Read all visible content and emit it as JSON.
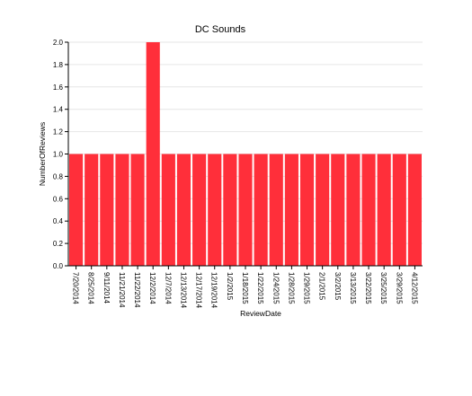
{
  "chart_data": {
    "type": "bar",
    "title": "DC Sounds",
    "xlabel": "ReviewDate",
    "ylabel": "NumberOfReviews",
    "ylim": [
      0,
      2.0
    ],
    "yticks": [
      "0.0",
      "0.2",
      "0.4",
      "0.6",
      "0.8",
      "1.0",
      "1.2",
      "1.4",
      "1.6",
      "1.8",
      "2.0"
    ],
    "grid": true,
    "bar_color": "#ff2f3a",
    "categories": [
      "7/20/2014",
      "8/25/2014",
      "9/11/2014",
      "11/21/2014",
      "11/22/2014",
      "12/2/2014",
      "12/7/2014",
      "12/13/2014",
      "12/17/2014",
      "12/19/2014",
      "1/2/2015",
      "1/18/2015",
      "1/22/2015",
      "1/24/2015",
      "1/28/2015",
      "1/29/2015",
      "2/1/2015",
      "3/2/2015",
      "3/13/2015",
      "3/22/2015",
      "3/25/2015",
      "3/29/2015",
      "4/12/2015"
    ],
    "values": [
      1,
      1,
      1,
      1,
      1,
      2,
      1,
      1,
      1,
      1,
      1,
      1,
      1,
      1,
      1,
      1,
      1,
      1,
      1,
      1,
      1,
      1,
      1
    ]
  }
}
